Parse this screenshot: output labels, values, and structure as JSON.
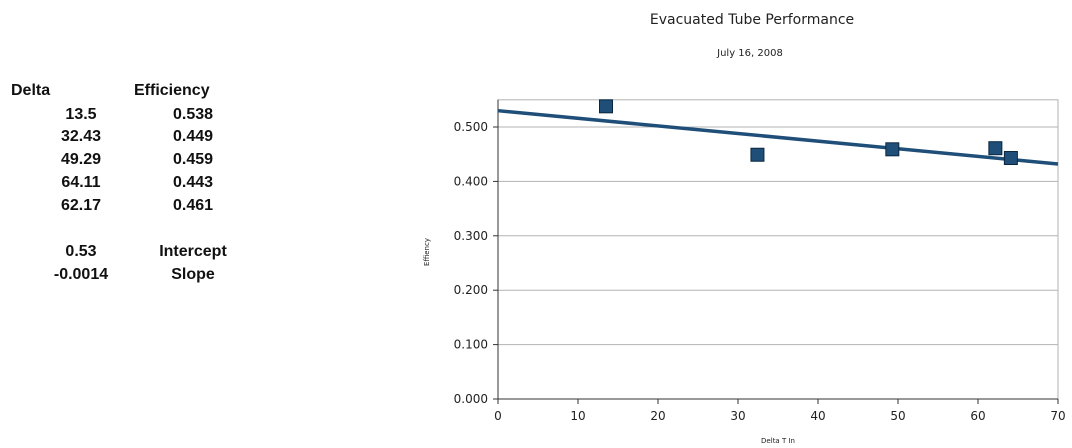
{
  "table": {
    "header_delta": "Delta",
    "header_efficiency": "Efficiency",
    "rows": [
      {
        "delta": "13.5",
        "efficiency": "0.538"
      },
      {
        "delta": "32.43",
        "efficiency": "0.449"
      },
      {
        "delta": "49.29",
        "efficiency": "0.459"
      },
      {
        "delta": "64.11",
        "efficiency": "0.443"
      },
      {
        "delta": "62.17",
        "efficiency": "0.461"
      }
    ],
    "intercept_value": "0.53",
    "intercept_label": "Intercept",
    "slope_value": "-0.0014",
    "slope_label": "Slope"
  },
  "chart_data": {
    "type": "scatter",
    "title": "Evacuated Tube Performance",
    "subtitle": "July 16, 2008",
    "xlabel": "Delta T In",
    "ylabel": "Effiency",
    "xlim": [
      0,
      70
    ],
    "ylim": [
      0,
      0.55
    ],
    "xticks": [
      0,
      10,
      20,
      30,
      40,
      50,
      60,
      70
    ],
    "yticks": [
      0,
      0.1,
      0.2,
      0.3,
      0.4,
      0.5
    ],
    "ytick_labels": [
      "0.000",
      "0.100",
      "0.200",
      "0.300",
      "0.400",
      "0.500"
    ],
    "grid": true,
    "points": [
      {
        "x": 13.5,
        "y": 0.538
      },
      {
        "x": 32.43,
        "y": 0.449
      },
      {
        "x": 49.29,
        "y": 0.459
      },
      {
        "x": 64.11,
        "y": 0.443
      },
      {
        "x": 62.17,
        "y": 0.461
      }
    ],
    "trendline": {
      "intercept": 0.53,
      "slope": -0.0014
    },
    "colors": {
      "marker": "#1f4e79",
      "trendline": "#1f4e79",
      "grid": "#b3b3b3"
    }
  }
}
